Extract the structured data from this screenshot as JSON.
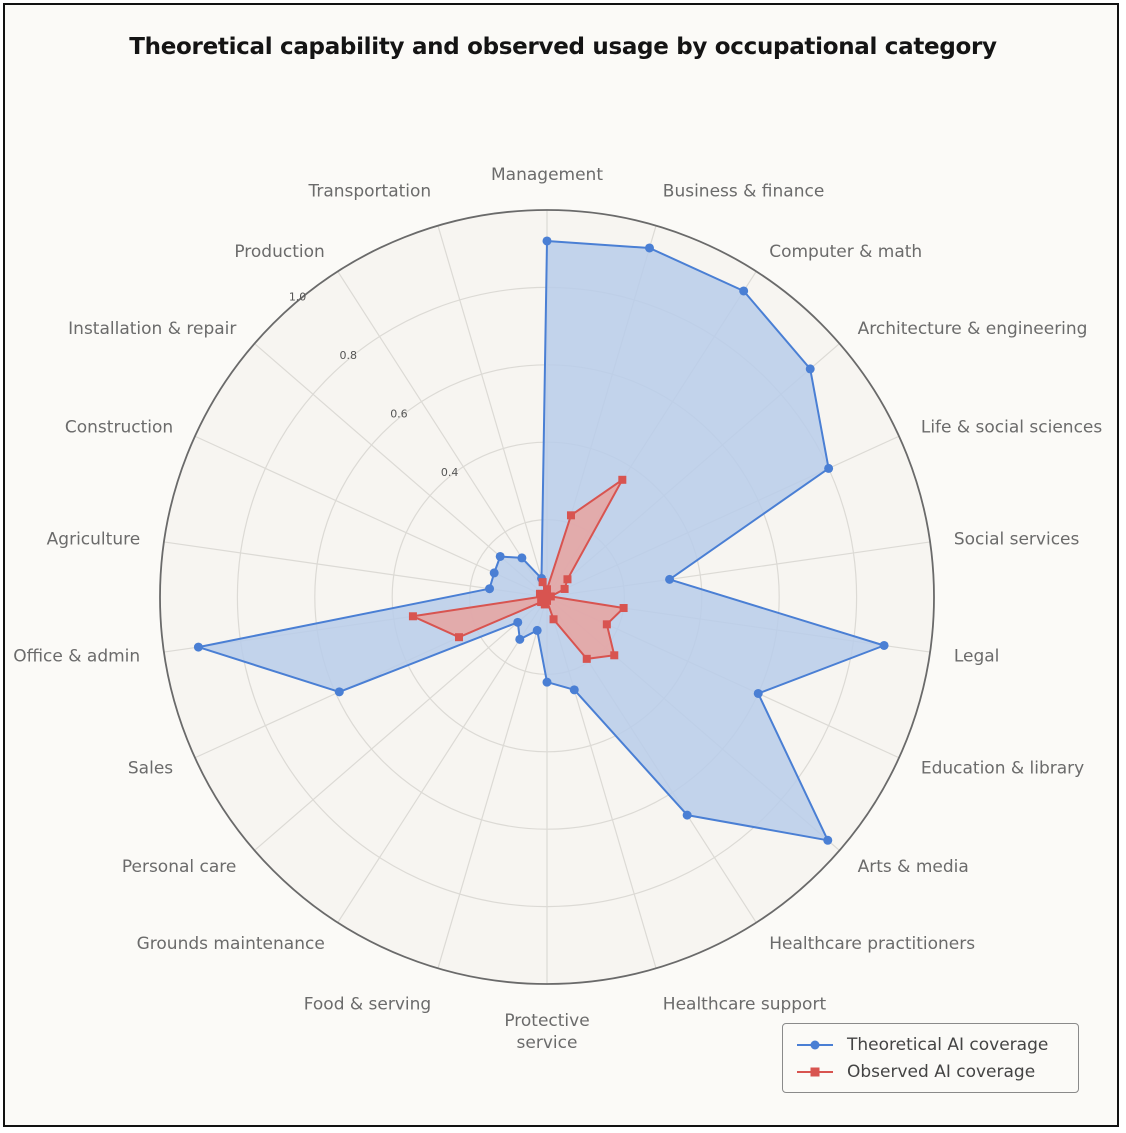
{
  "chart_data": {
    "type": "radar",
    "title": "Theoretical capability and observed usage by occupational category",
    "categories": [
      "Management",
      "Business & finance",
      "Computer & math",
      "Architecture & engineering",
      "Life & social sciences",
      "Social services",
      "Legal",
      "Education & library",
      "Arts & media",
      "Healthcare practitioners",
      "Healthcare support",
      "Protective service",
      "Food & serving",
      "Grounds maintenance",
      "Personal care",
      "Sales",
      "Office & admin",
      "Agriculture",
      "Construction",
      "Installation & repair",
      "Production",
      "Transportation"
    ],
    "category_display": [
      "Management",
      "Business & finance",
      "Computer & math",
      "Architecture & engineering",
      "Life & social sciences",
      "Social services",
      "Legal",
      "Education & library",
      "Arts & media",
      "Healthcare practitioners",
      "Healthcare support",
      "Protective\nservice",
      "Food & serving",
      "Grounds maintenance",
      "Personal care",
      "Sales",
      "Office & admin",
      "Agriculture",
      "Construction",
      "Installation & repair",
      "Production",
      "Transportation"
    ],
    "rlim": [
      0,
      1.0
    ],
    "r_ticks": [
      0.4,
      0.6,
      0.8,
      1.0
    ],
    "r_tick_labels": [
      "0.4",
      "0.6",
      "0.8",
      "1.0"
    ],
    "grid": true,
    "legend_position": "bottom-right",
    "series": [
      {
        "name": "Theoretical AI coverage",
        "color": "#4a7fd4",
        "fill": "#b8cdea",
        "marker": "circle",
        "values": [
          0.92,
          0.94,
          0.94,
          0.9,
          0.8,
          0.32,
          0.88,
          0.6,
          0.96,
          0.67,
          0.25,
          0.22,
          0.09,
          0.13,
          0.1,
          0.59,
          0.91,
          0.15,
          0.15,
          0.16,
          0.12,
          0.05
        ]
      },
      {
        "name": "Observed AI coverage",
        "color": "#d85450",
        "fill": "#e8a3a0",
        "marker": "square",
        "values": [
          0.02,
          0.22,
          0.36,
          0.07,
          0.05,
          0.01,
          0.2,
          0.17,
          0.23,
          0.19,
          0.06,
          0.01,
          0.02,
          0.0,
          0.02,
          0.25,
          0.35,
          0.01,
          0.02,
          0.01,
          0.0,
          0.04
        ]
      }
    ]
  },
  "legend": {
    "theoretical_label": "Theoretical AI coverage",
    "observed_label": "Observed AI coverage"
  }
}
